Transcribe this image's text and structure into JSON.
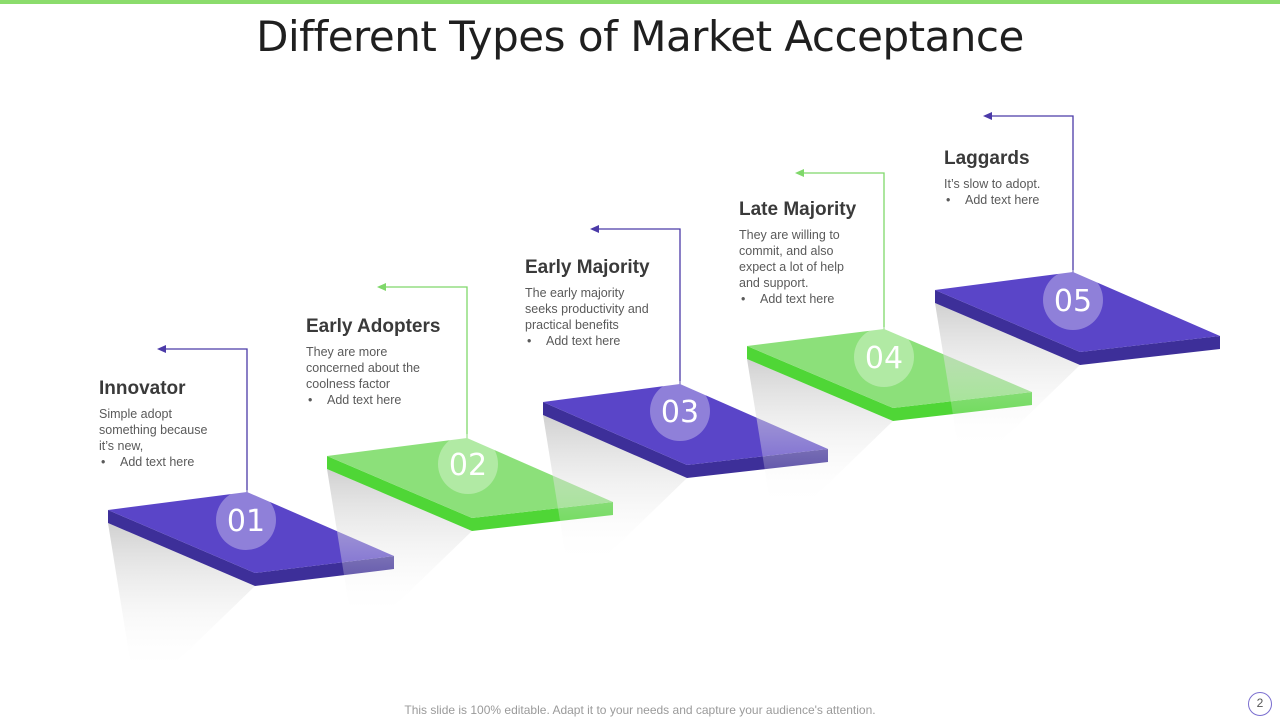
{
  "colors": {
    "accent_bar": "#8bdc6c",
    "purple_top": "#5a45c8",
    "purple_side": "#3d2f99",
    "green_top": "#8ce07a",
    "green_side": "#4fd636",
    "purple_arrow": "#4b3aa8",
    "green_arrow": "#7fd86a"
  },
  "slide": {
    "title": "Different Types of Market Acceptance",
    "footer": "This slide is 100% editable. Adapt it to your needs and capture your audience's attention.",
    "page_number": "2"
  },
  "steps": [
    {
      "number": "01",
      "heading": "Innovator",
      "description": "Simple adopt something because it’s new,",
      "bullet": "Add text here",
      "color": "purple"
    },
    {
      "number": "02",
      "heading": "Early Adopters",
      "description": "They are more concerned about the coolness factor",
      "bullet": "Add text here",
      "color": "green"
    },
    {
      "number": "03",
      "heading": "Early Majority",
      "description": "The early majority seeks productivity and practical benefits",
      "bullet": "Add text here",
      "color": "purple"
    },
    {
      "number": "04",
      "heading": "Late Majority",
      "description": "They are willing to commit, and also expect a lot of help and support.",
      "bullet": "Add text here",
      "color": "green"
    },
    {
      "number": "05",
      "heading": "Laggards",
      "description": "It’s slow to adopt.",
      "bullet": "Add text here",
      "color": "purple"
    }
  ]
}
